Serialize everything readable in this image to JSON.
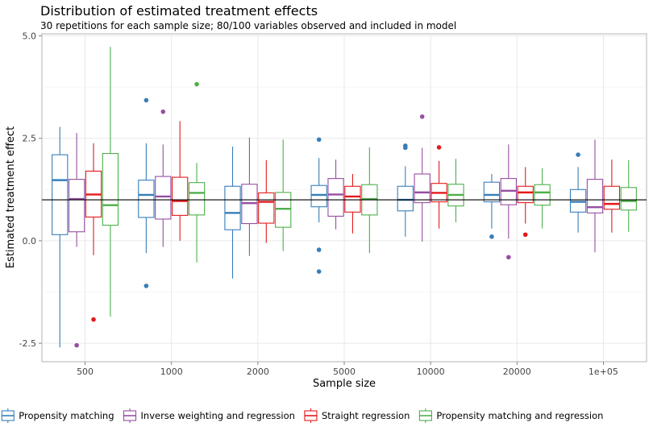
{
  "chart_data": {
    "type": "box",
    "title": "Distribution of estimated treatment effects",
    "subtitle": "30 repetitions for each sample size; 80/100 variables observed and included in model",
    "xlabel": "Sample size",
    "ylabel": "Estimated treatment effect",
    "ylim": [
      -2.95,
      5.05
    ],
    "yticks": [
      -2.5,
      0.0,
      2.5,
      5.0
    ],
    "ytick_labels": [
      "-2.5",
      "0.0",
      "2.5",
      "5.0"
    ],
    "categories": [
      "500",
      "1000",
      "2000",
      "5000",
      "10000",
      "20000",
      "1e+05"
    ],
    "reference_line": 1,
    "grid": true,
    "legend_position": "bottom",
    "series": [
      {
        "name": "Propensity matching",
        "color": "#377eb8",
        "boxes": [
          {
            "min": -2.6,
            "q1": 0.15,
            "median": 1.48,
            "q3": 2.1,
            "max": 2.78,
            "outliers": []
          },
          {
            "min": -0.3,
            "q1": 0.57,
            "median": 1.12,
            "q3": 1.48,
            "max": 2.38,
            "outliers": [
              3.43,
              -1.1
            ]
          },
          {
            "min": -0.92,
            "q1": 0.27,
            "median": 0.68,
            "q3": 1.33,
            "max": 2.3,
            "outliers": []
          },
          {
            "min": 0.45,
            "q1": 0.83,
            "median": 1.12,
            "q3": 1.35,
            "max": 2.02,
            "outliers": [
              2.47,
              -0.22,
              -0.75
            ]
          },
          {
            "min": 0.1,
            "q1": 0.73,
            "median": 1.0,
            "q3": 1.33,
            "max": 1.82,
            "outliers": [
              2.32,
              2.27
            ]
          },
          {
            "min": 0.3,
            "q1": 0.95,
            "median": 1.12,
            "q3": 1.43,
            "max": 1.63,
            "outliers": [
              0.1
            ]
          },
          {
            "min": 0.2,
            "q1": 0.7,
            "median": 0.95,
            "q3": 1.25,
            "max": 1.8,
            "outliers": [
              2.1
            ]
          }
        ]
      },
      {
        "name": "Inverse weighting and regression",
        "color": "#984ea3",
        "boxes": [
          {
            "min": -0.15,
            "q1": 0.22,
            "median": 1.02,
            "q3": 1.5,
            "max": 2.63,
            "outliers": [
              -2.55
            ]
          },
          {
            "min": -0.15,
            "q1": 0.53,
            "median": 1.08,
            "q3": 1.57,
            "max": 2.35,
            "outliers": [
              3.15
            ]
          },
          {
            "min": -0.37,
            "q1": 0.42,
            "median": 0.92,
            "q3": 1.38,
            "max": 2.52,
            "outliers": []
          },
          {
            "min": 0.28,
            "q1": 0.6,
            "median": 1.13,
            "q3": 1.52,
            "max": 1.98,
            "outliers": []
          },
          {
            "min": -0.02,
            "q1": 0.93,
            "median": 1.18,
            "q3": 1.63,
            "max": 2.27,
            "outliers": [
              3.03
            ]
          },
          {
            "min": 0.05,
            "q1": 0.88,
            "median": 1.22,
            "q3": 1.52,
            "max": 2.35,
            "outliers": [
              -0.4
            ]
          },
          {
            "min": -0.28,
            "q1": 0.68,
            "median": 0.82,
            "q3": 1.5,
            "max": 2.47,
            "outliers": []
          }
        ]
      },
      {
        "name": "Straight regression",
        "color": "#e41a1c",
        "boxes": [
          {
            "min": -0.35,
            "q1": 0.58,
            "median": 1.13,
            "q3": 1.7,
            "max": 2.38,
            "outliers": [
              -1.92
            ]
          },
          {
            "min": 0.0,
            "q1": 0.62,
            "median": 0.97,
            "q3": 1.55,
            "max": 2.92,
            "outliers": []
          },
          {
            "min": -0.05,
            "q1": 0.43,
            "median": 0.95,
            "q3": 1.17,
            "max": 1.97,
            "outliers": []
          },
          {
            "min": 0.18,
            "q1": 0.7,
            "median": 1.08,
            "q3": 1.33,
            "max": 1.63,
            "outliers": []
          },
          {
            "min": 0.3,
            "q1": 0.95,
            "median": 1.17,
            "q3": 1.4,
            "max": 1.95,
            "outliers": [
              2.28
            ]
          },
          {
            "min": 0.42,
            "q1": 0.93,
            "median": 1.18,
            "q3": 1.33,
            "max": 1.8,
            "outliers": [
              0.15
            ]
          },
          {
            "min": 0.2,
            "q1": 0.77,
            "median": 0.9,
            "q3": 1.33,
            "max": 1.98,
            "outliers": []
          }
        ]
      },
      {
        "name": "Propensity matching and regression",
        "color": "#4daf4a",
        "boxes": [
          {
            "min": -1.85,
            "q1": 0.38,
            "median": 0.87,
            "q3": 2.13,
            "max": 4.73,
            "outliers": []
          },
          {
            "min": -0.53,
            "q1": 0.63,
            "median": 1.17,
            "q3": 1.42,
            "max": 1.9,
            "outliers": [
              3.82
            ]
          },
          {
            "min": -0.25,
            "q1": 0.33,
            "median": 0.78,
            "q3": 1.18,
            "max": 2.47,
            "outliers": []
          },
          {
            "min": -0.3,
            "q1": 0.63,
            "median": 1.02,
            "q3": 1.37,
            "max": 2.28,
            "outliers": []
          },
          {
            "min": 0.45,
            "q1": 0.85,
            "median": 1.12,
            "q3": 1.38,
            "max": 2.0,
            "outliers": []
          },
          {
            "min": 0.3,
            "q1": 0.87,
            "median": 1.18,
            "q3": 1.37,
            "max": 1.77,
            "outliers": []
          },
          {
            "min": 0.22,
            "q1": 0.75,
            "median": 0.97,
            "q3": 1.3,
            "max": 1.97,
            "outliers": []
          }
        ]
      }
    ]
  }
}
